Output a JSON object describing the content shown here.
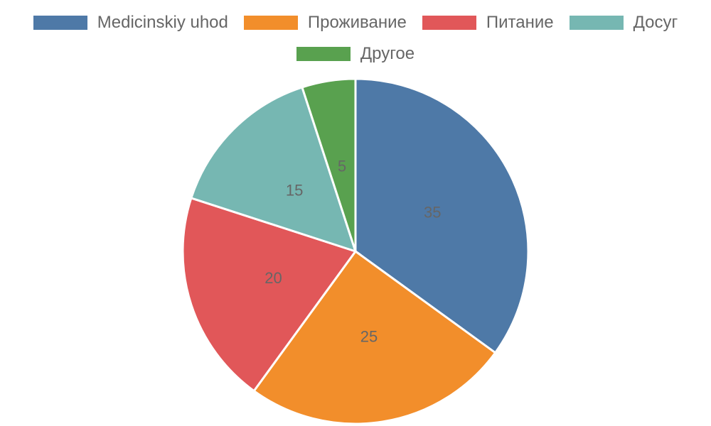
{
  "chart_data": {
    "type": "pie",
    "categories": [
      "Medicinskiy uhod",
      "Проживание",
      "Питание",
      "Досуг",
      "Другое"
    ],
    "values": [
      35,
      25,
      20,
      15,
      5
    ],
    "colors": [
      "#4e79a7",
      "#f28e2b",
      "#e15759",
      "#76b7b2",
      "#59a14f"
    ],
    "data_labels": [
      "35",
      "25",
      "20",
      "15",
      "5"
    ],
    "legend_position": "top",
    "title": ""
  }
}
